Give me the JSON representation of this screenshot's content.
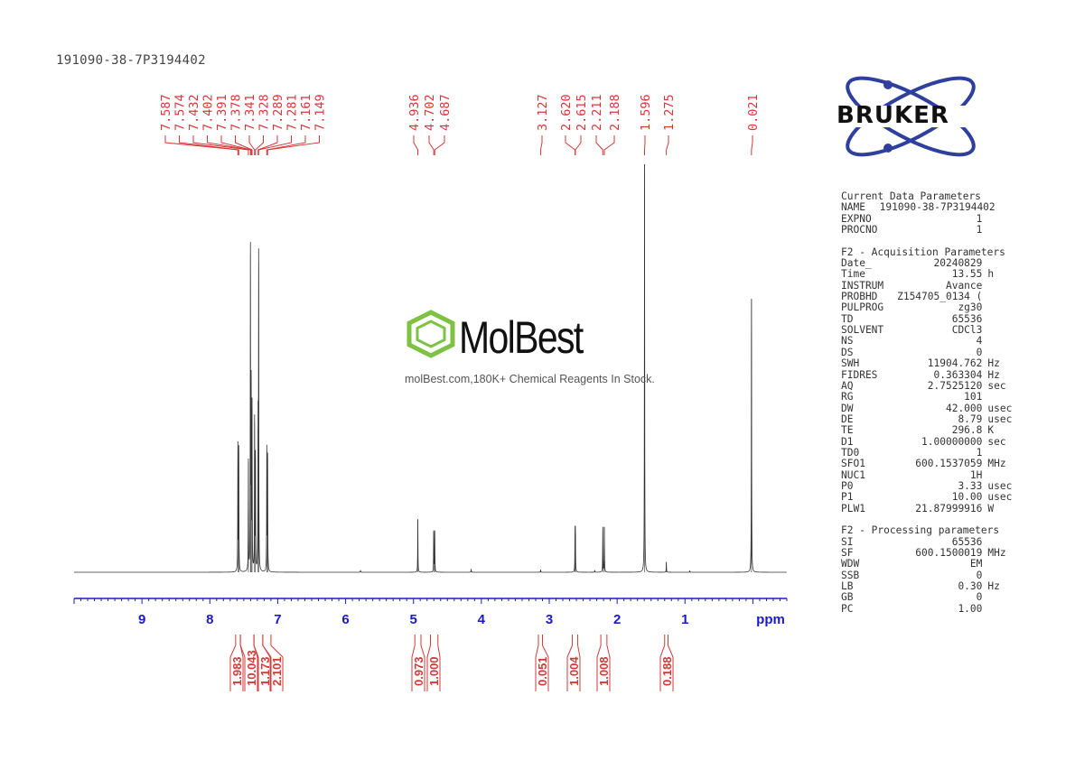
{
  "title": "191090-38-7P3194402",
  "watermark": {
    "name": "MolBest",
    "tagline": "molBest.com,180K+ Chemical Reagents In Stock.",
    "color": "#7dc242"
  },
  "bruker_logo": {
    "text": "BRUKER",
    "orbit_color": "#2e3f9e"
  },
  "colors": {
    "peak_labels": "#d23a3a",
    "axis": "#1a1acc",
    "trace": "#333333"
  },
  "parameters": {
    "sections": [
      {
        "title": "Current Data Parameters",
        "rows": [
          {
            "key": "NAME",
            "value": "191090-38-7P3194402",
            "unit": ""
          },
          {
            "key": "EXPNO",
            "value": "1",
            "unit": ""
          },
          {
            "key": "PROCNO",
            "value": "1",
            "unit": ""
          }
        ]
      },
      {
        "title": "F2 - Acquisition Parameters",
        "rows": [
          {
            "key": "Date_",
            "value": "20240829",
            "unit": ""
          },
          {
            "key": "Time",
            "value": "13.55",
            "unit": "h"
          },
          {
            "key": "INSTRUM",
            "value": "Avance",
            "unit": ""
          },
          {
            "key": "PROBHD",
            "value": "Z154705_0134 (",
            "unit": ""
          },
          {
            "key": "PULPROG",
            "value": "zg30",
            "unit": ""
          },
          {
            "key": "TD",
            "value": "65536",
            "unit": ""
          },
          {
            "key": "SOLVENT",
            "value": "CDCl3",
            "unit": ""
          },
          {
            "key": "NS",
            "value": "4",
            "unit": ""
          },
          {
            "key": "DS",
            "value": "0",
            "unit": ""
          },
          {
            "key": "SWH",
            "value": "11904.762",
            "unit": "Hz"
          },
          {
            "key": "FIDRES",
            "value": "0.363304",
            "unit": "Hz"
          },
          {
            "key": "AQ",
            "value": "2.7525120",
            "unit": "sec"
          },
          {
            "key": "RG",
            "value": "101",
            "unit": ""
          },
          {
            "key": "DW",
            "value": "42.000",
            "unit": "usec"
          },
          {
            "key": "DE",
            "value": "8.79",
            "unit": "usec"
          },
          {
            "key": "TE",
            "value": "296.8",
            "unit": "K"
          },
          {
            "key": "D1",
            "value": "1.00000000",
            "unit": "sec"
          },
          {
            "key": "TD0",
            "value": "1",
            "unit": ""
          },
          {
            "key": "SFO1",
            "value": "600.1537059",
            "unit": "MHz"
          },
          {
            "key": "NUC1",
            "value": "1H",
            "unit": ""
          },
          {
            "key": "P0",
            "value": "3.33",
            "unit": "usec"
          },
          {
            "key": "P1",
            "value": "10.00",
            "unit": "usec"
          },
          {
            "key": "PLW1",
            "value": "21.87999916",
            "unit": "W"
          }
        ]
      },
      {
        "title": "F2 - Processing parameters",
        "rows": [
          {
            "key": "SI",
            "value": "65536",
            "unit": ""
          },
          {
            "key": "SF",
            "value": "600.1500019",
            "unit": "MHz"
          },
          {
            "key": "WDW",
            "value": "EM",
            "unit": ""
          },
          {
            "key": "SSB",
            "value": "0",
            "unit": ""
          },
          {
            "key": "LB",
            "value": "0.30",
            "unit": "Hz"
          },
          {
            "key": "GB",
            "value": "0",
            "unit": ""
          },
          {
            "key": "PC",
            "value": "1.00",
            "unit": ""
          }
        ]
      }
    ]
  },
  "chart_data": {
    "type": "line",
    "xlabel": "ppm",
    "xlim": [
      10.0,
      -0.5
    ],
    "x_reversed": true,
    "xticks": [
      "9",
      "8",
      "7",
      "6",
      "5",
      "4",
      "3",
      "2",
      "1"
    ],
    "grid": false,
    "peak_labels": [
      "7.587",
      "7.574",
      "7.432",
      "7.402",
      "7.391",
      "7.378",
      "7.341",
      "7.328",
      "7.289",
      "7.281",
      "7.161",
      "7.149",
      "4.936",
      "4.702",
      "4.687",
      "3.127",
      "2.620",
      "2.615",
      "2.211",
      "2.188",
      "1.596",
      "1.275",
      "0.021"
    ],
    "peaks": [
      {
        "ppm": 7.587,
        "intensity": 31
      },
      {
        "ppm": 7.574,
        "intensity": 30
      },
      {
        "ppm": 7.432,
        "intensity": 27
      },
      {
        "ppm": 7.402,
        "intensity": 78
      },
      {
        "ppm": 7.391,
        "intensity": 44
      },
      {
        "ppm": 7.378,
        "intensity": 40
      },
      {
        "ppm": 7.341,
        "intensity": 37
      },
      {
        "ppm": 7.328,
        "intensity": 28
      },
      {
        "ppm": 7.289,
        "intensity": 35
      },
      {
        "ppm": 7.281,
        "intensity": 76
      },
      {
        "ppm": 7.161,
        "intensity": 30
      },
      {
        "ppm": 7.149,
        "intensity": 28
      },
      {
        "ppm": 5.78,
        "intensity": 0.5
      },
      {
        "ppm": 4.936,
        "intensity": 13
      },
      {
        "ppm": 4.702,
        "intensity": 10
      },
      {
        "ppm": 4.687,
        "intensity": 10
      },
      {
        "ppm": 4.15,
        "intensity": 0.8
      },
      {
        "ppm": 3.127,
        "intensity": 0.6
      },
      {
        "ppm": 2.62,
        "intensity": 9.5
      },
      {
        "ppm": 2.615,
        "intensity": 9.5
      },
      {
        "ppm": 2.33,
        "intensity": 0.5
      },
      {
        "ppm": 2.211,
        "intensity": 11
      },
      {
        "ppm": 2.188,
        "intensity": 11
      },
      {
        "ppm": 1.596,
        "intensity": 100
      },
      {
        "ppm": 1.275,
        "intensity": 2.5
      },
      {
        "ppm": 0.93,
        "intensity": 0.4
      },
      {
        "ppm": 0.021,
        "intensity": 67
      }
    ],
    "integrals": [
      {
        "label": "1.983",
        "from": 7.62,
        "to": 7.55
      },
      {
        "label": "10.043",
        "from": 7.55,
        "to": 7.35
      },
      {
        "label": "1.173",
        "from": 7.35,
        "to": 7.22
      },
      {
        "label": "2.101",
        "from": 7.22,
        "to": 7.1
      },
      {
        "label": "0.973",
        "from": 4.98,
        "to": 4.89
      },
      {
        "label": "1.000",
        "from": 4.75,
        "to": 4.64
      },
      {
        "label": "0.051",
        "from": 3.16,
        "to": 3.1
      },
      {
        "label": "1.004",
        "from": 2.66,
        "to": 2.58
      },
      {
        "label": "1.008",
        "from": 2.24,
        "to": 2.15
      },
      {
        "label": "0.188",
        "from": 1.3,
        "to": 1.25
      }
    ]
  }
}
